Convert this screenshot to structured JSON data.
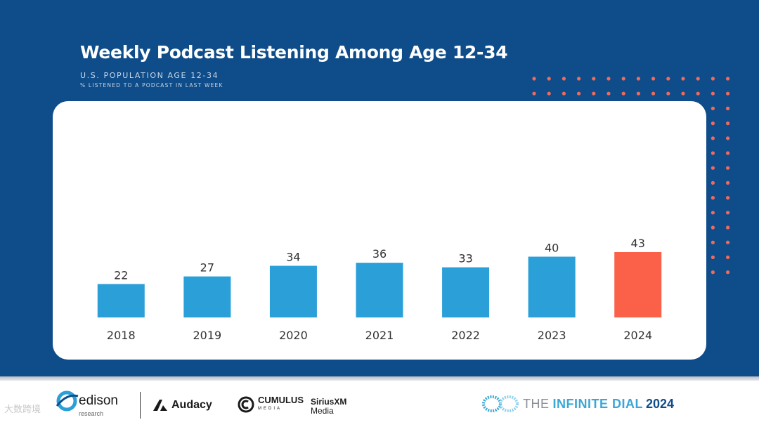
{
  "slide": {
    "title": "Weekly Podcast Listening Among Age 12-34",
    "subtitle_line1": "U.S. POPULATION AGE 12-34",
    "subtitle_line2": "% LISTENED TO A PODCAST IN LAST WEEK"
  },
  "colors": {
    "background": "#0f4d8a",
    "bar": "#2a9fd8",
    "highlight_bar": "#fb6149",
    "dots": "#f26a5a"
  },
  "chart_data": {
    "type": "bar",
    "categories": [
      "2018",
      "2019",
      "2020",
      "2021",
      "2022",
      "2023",
      "2024"
    ],
    "values": [
      22,
      27,
      34,
      36,
      33,
      40,
      43
    ],
    "value_labels": [
      "22",
      "27",
      "34",
      "36",
      "33",
      "40",
      "43"
    ],
    "highlight_index": 6,
    "title": "Weekly Podcast Listening Among Age 12-34",
    "xlabel": "",
    "ylabel": "",
    "ylim": [
      0,
      43
    ],
    "grid": false,
    "legend": "none"
  },
  "footer": {
    "logos": {
      "edison": "edison",
      "edison_tag": "research",
      "audacy": "Audacy",
      "cumulus": "CUMULUS",
      "cumulus_sub": "MEDIA",
      "sirius_line1": "SiriusXM",
      "sirius_line2": "Media",
      "dial_part1": "THE",
      "dial_part2": "INFINITE DIAL",
      "dial_year": "2024"
    },
    "watermark": "大数跨境"
  }
}
